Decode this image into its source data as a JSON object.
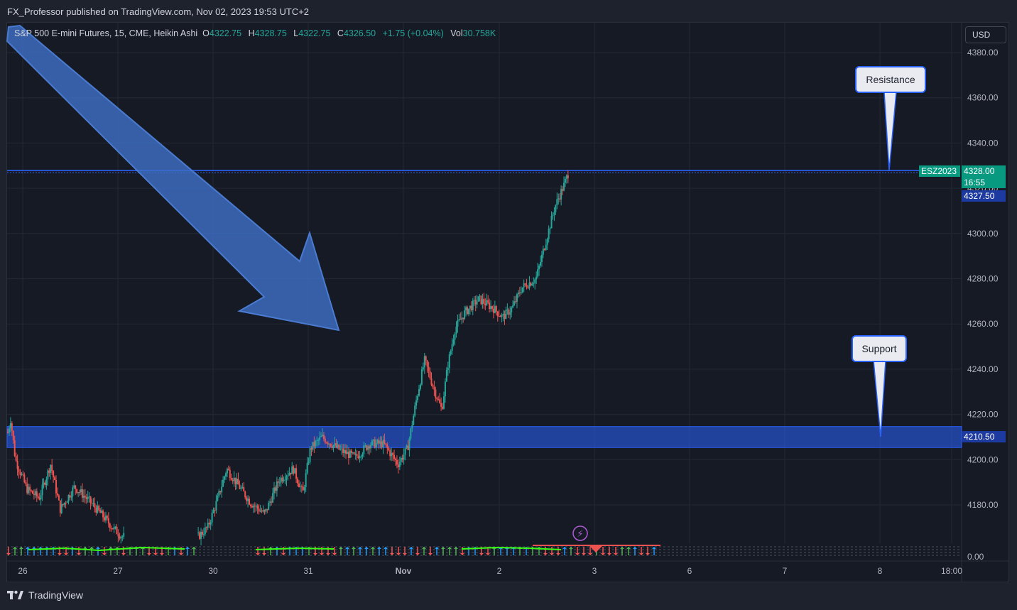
{
  "header": {
    "published_line": "FX_Professor published on TradingView.com, Nov 02, 2023 19:53 UTC+2"
  },
  "legend": {
    "symbol": "S&P 500 E-mini Futures, 15, CME, Heikin Ashi",
    "o_label": "O",
    "o_value": "4322.75",
    "h_label": "H",
    "h_value": "4328.75",
    "l_label": "L",
    "l_value": "4322.75",
    "c_label": "C",
    "c_value": "4326.50",
    "change": "+1.75 (+0.04%)",
    "vol_label": "Vol",
    "vol_value": "30.758K"
  },
  "currency_button": "USD",
  "footer": {
    "brand": "TradingView"
  },
  "annotations": {
    "resistance": "Resistance",
    "support": "Support"
  },
  "price_tags": {
    "ticker": "ESZ2023",
    "last_price": "4328.00",
    "countdown": "16:55",
    "line_price": "4327.50",
    "support_price": "4210.50"
  },
  "indicator_axis_label": "0.00",
  "colors": {
    "background": "#161a25",
    "up": "#26a69a",
    "down": "#ef5350",
    "zone": "#2962ff",
    "arrow": "#3d6fc6"
  },
  "chart_data": {
    "type": "candlestick",
    "chart_style": "Heikin Ashi",
    "symbol": "ESZ2023",
    "timeframe": "15",
    "y_axis": {
      "ticks": [
        "4380.00",
        "4360.00",
        "4340.00",
        "4320.00",
        "4300.00",
        "4280.00",
        "4260.00",
        "4240.00",
        "4220.00",
        "4200.00",
        "4180.00"
      ],
      "range": [
        4166,
        4390
      ]
    },
    "x_axis": {
      "ticks": [
        "26",
        "27",
        "30",
        "31",
        "Nov",
        "2",
        "3",
        "6",
        "7",
        "8",
        "18:00"
      ]
    },
    "resistance_level": 4327.5,
    "support_zone": [
      4206,
      4214
    ],
    "price_path": [
      [
        0.0,
        4212
      ],
      [
        0.03,
        4218
      ],
      [
        0.08,
        4200
      ],
      [
        0.2,
        4187
      ],
      [
        0.33,
        4183
      ],
      [
        0.45,
        4198
      ],
      [
        0.55,
        4178
      ],
      [
        0.7,
        4188
      ],
      [
        0.85,
        4182
      ],
      [
        1.0,
        4175
      ],
      [
        1.1,
        4170
      ],
      [
        1.2,
        4166
      ],
      [
        2.0,
        4166
      ],
      [
        2.1,
        4170
      ],
      [
        2.2,
        4182
      ],
      [
        2.3,
        4196
      ],
      [
        2.4,
        4190
      ],
      [
        2.55,
        4181
      ],
      [
        2.7,
        4176
      ],
      [
        2.85,
        4191
      ],
      [
        3.0,
        4196
      ],
      [
        3.1,
        4185
      ],
      [
        3.18,
        4205
      ],
      [
        3.3,
        4210
      ],
      [
        3.5,
        4204
      ],
      [
        3.65,
        4201
      ],
      [
        3.8,
        4207
      ],
      [
        3.95,
        4207
      ],
      [
        4.1,
        4198
      ],
      [
        4.2,
        4205
      ],
      [
        4.3,
        4228
      ],
      [
        4.38,
        4244
      ],
      [
        4.48,
        4231
      ],
      [
        4.56,
        4222
      ],
      [
        4.62,
        4241
      ],
      [
        4.7,
        4258
      ],
      [
        4.8,
        4265
      ],
      [
        4.95,
        4271
      ],
      [
        5.1,
        4267
      ],
      [
        5.2,
        4263
      ],
      [
        5.3,
        4267
      ],
      [
        5.4,
        4276
      ],
      [
        5.55,
        4280
      ],
      [
        5.65,
        4296
      ],
      [
        5.75,
        4312
      ],
      [
        5.85,
        4322
      ],
      [
        5.9,
        4328
      ]
    ],
    "last_values": {
      "open": 4322.75,
      "high": 4328.75,
      "low": 4322.75,
      "close": 4326.5,
      "change": 1.75,
      "change_pct": 0.04,
      "volume": "30.758K"
    }
  }
}
